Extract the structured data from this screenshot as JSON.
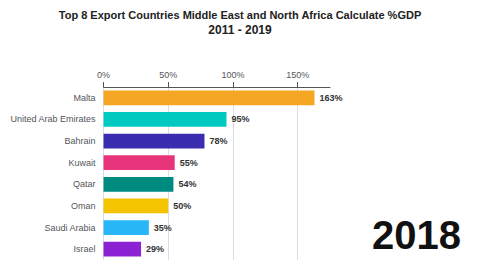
{
  "chart_data": {
    "type": "bar",
    "orientation": "horizontal",
    "title": "Top 8 Export Countries Middle East and North Africa Calculate %GDP",
    "subtitle": "2011 - 2019",
    "annotation": "2018",
    "categories": [
      "Malta",
      "United Arab Emirates",
      "Bahrain",
      "Kuwait",
      "Qatar",
      "Oman",
      "Saudi Arabia",
      "Israel"
    ],
    "values": [
      163,
      95,
      78,
      55,
      54,
      50,
      35,
      29
    ],
    "value_labels": [
      "163%",
      "95%",
      "78%",
      "55%",
      "54%",
      "50%",
      "35%",
      "29%"
    ],
    "colors": [
      "#F5A623",
      "#00C9C0",
      "#3A2DB0",
      "#E8347A",
      "#008B80",
      "#F5C400",
      "#29B6F6",
      "#8B22D4"
    ],
    "xlim": [
      0,
      175
    ],
    "xticks": [
      {
        "value": 0,
        "label": "0%"
      },
      {
        "value": 50,
        "label": "50%"
      },
      {
        "value": 100,
        "label": "100%"
      },
      {
        "value": 150,
        "label": "150%"
      }
    ],
    "grid": true,
    "data_labels": true
  }
}
